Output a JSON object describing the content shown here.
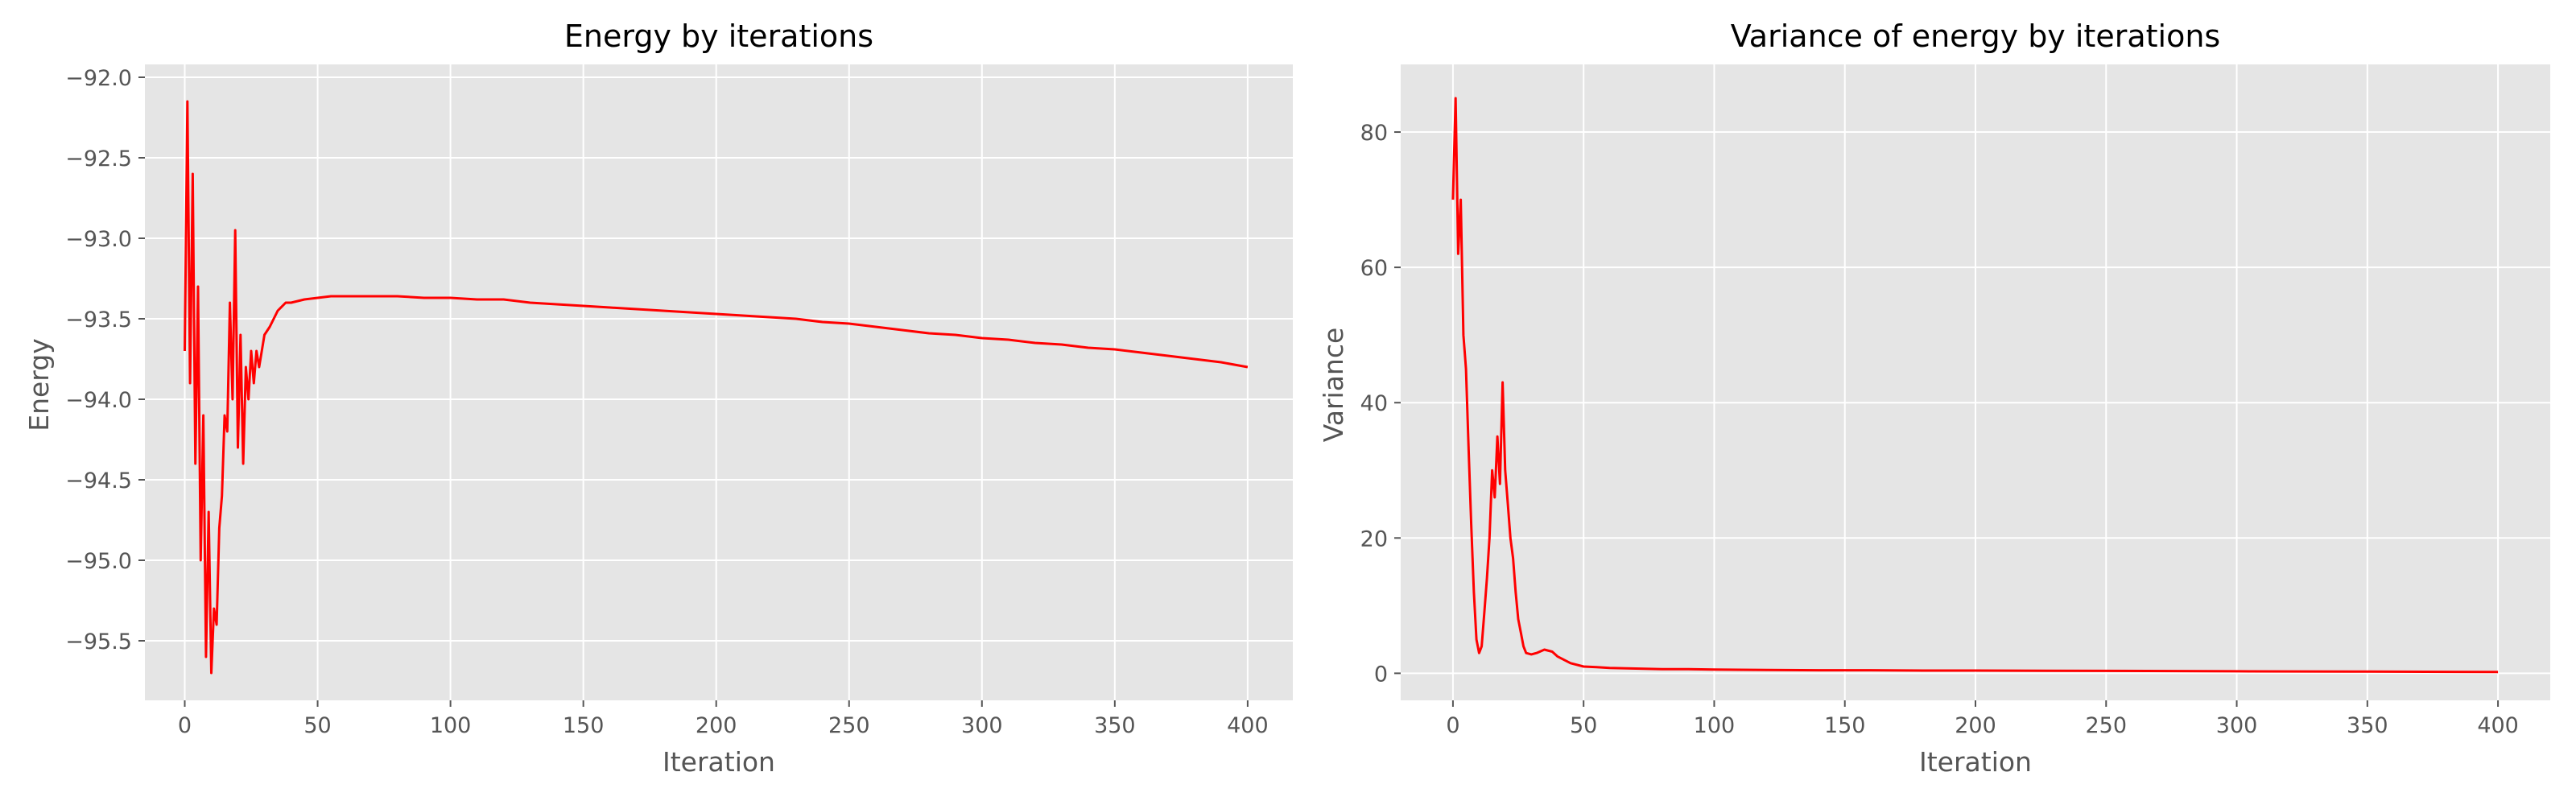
{
  "chart_data": [
    {
      "type": "line",
      "title": "Energy by iterations",
      "xlabel": "Iteration",
      "ylabel": "Energy",
      "xlim": [
        -15,
        417
      ],
      "ylim": [
        -95.87,
        -91.92
      ],
      "xticks": [
        0,
        50,
        100,
        150,
        200,
        250,
        300,
        350,
        400
      ],
      "yticks": [
        -95.5,
        -95.0,
        -94.5,
        -94.0,
        -93.5,
        -93.0,
        -92.5,
        -92.0
      ],
      "grid": true,
      "color": "#ff0000",
      "series": [
        {
          "x": [
            0,
            1,
            2,
            3,
            4,
            5,
            6,
            7,
            8,
            9,
            10,
            11,
            12,
            13,
            14,
            15,
            16,
            17,
            18,
            19,
            20,
            21,
            22,
            23,
            24,
            25,
            26,
            27,
            28,
            30,
            32,
            35,
            38,
            40,
            45,
            50,
            55,
            60,
            70,
            80,
            90,
            100,
            110,
            120,
            130,
            140,
            150,
            160,
            170,
            180,
            190,
            200,
            210,
            220,
            230,
            240,
            250,
            260,
            270,
            280,
            290,
            300,
            310,
            320,
            330,
            340,
            350,
            360,
            370,
            380,
            390,
            400
          ],
          "y": [
            -93.7,
            -92.15,
            -93.9,
            -92.6,
            -94.4,
            -93.3,
            -95.0,
            -94.1,
            -95.6,
            -94.7,
            -95.7,
            -95.3,
            -95.4,
            -94.8,
            -94.6,
            -94.1,
            -94.2,
            -93.4,
            -94.0,
            -92.95,
            -94.3,
            -93.6,
            -94.4,
            -93.8,
            -94.0,
            -93.7,
            -93.9,
            -93.7,
            -93.8,
            -93.6,
            -93.55,
            -93.45,
            -93.4,
            -93.4,
            -93.38,
            -93.37,
            -93.36,
            -93.36,
            -93.36,
            -93.36,
            -93.37,
            -93.37,
            -93.38,
            -93.38,
            -93.4,
            -93.41,
            -93.42,
            -93.43,
            -93.44,
            -93.45,
            -93.46,
            -93.47,
            -93.48,
            -93.49,
            -93.5,
            -93.52,
            -93.53,
            -93.55,
            -93.57,
            -93.59,
            -93.6,
            -93.62,
            -93.63,
            -93.65,
            -93.66,
            -93.68,
            -93.69,
            -93.71,
            -93.73,
            -93.75,
            -93.77,
            -93.8
          ]
        }
      ]
    },
    {
      "type": "line",
      "title": "Variance of energy by iterations",
      "xlabel": "Iteration",
      "ylabel": "Variance",
      "xlim": [
        -20,
        420
      ],
      "ylim": [
        -4,
        90
      ],
      "xticks": [
        0,
        50,
        100,
        150,
        200,
        250,
        300,
        350,
        400
      ],
      "yticks": [
        0,
        20,
        40,
        60,
        80
      ],
      "grid": true,
      "color": "#ff0000",
      "series": [
        {
          "x": [
            0,
            1,
            2,
            3,
            4,
            5,
            6,
            7,
            8,
            9,
            10,
            11,
            12,
            13,
            14,
            15,
            16,
            17,
            18,
            19,
            20,
            21,
            22,
            23,
            24,
            25,
            26,
            27,
            28,
            30,
            32,
            35,
            38,
            40,
            45,
            50,
            55,
            60,
            70,
            80,
            90,
            100,
            120,
            140,
            160,
            180,
            200,
            250,
            300,
            350,
            400
          ],
          "y": [
            70,
            85,
            62,
            70,
            50,
            45,
            33,
            22,
            12,
            5,
            3,
            4,
            9,
            14,
            20,
            30,
            26,
            35,
            28,
            43,
            30,
            25,
            20,
            17,
            12,
            8,
            6,
            4,
            3,
            2.8,
            3.0,
            3.5,
            3.2,
            2.5,
            1.5,
            1.0,
            0.9,
            0.8,
            0.7,
            0.6,
            0.6,
            0.55,
            0.5,
            0.45,
            0.45,
            0.4,
            0.4,
            0.35,
            0.3,
            0.25,
            0.2
          ]
        }
      ]
    }
  ]
}
